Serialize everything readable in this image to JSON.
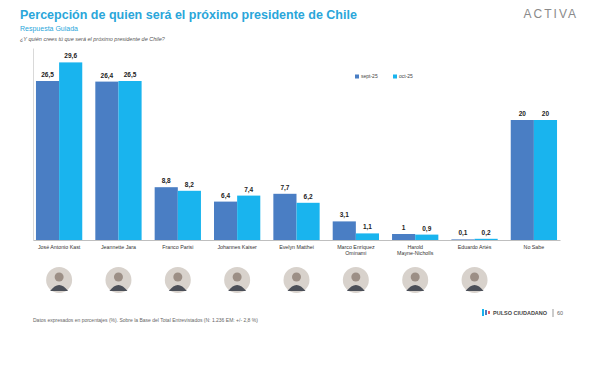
{
  "chart_data": {
    "type": "bar",
    "title": "Percepción de quien será el próximo presidente de Chile",
    "subtitle": "Respuesta Guiada",
    "question": "¿Y quién crees tú que será el próximo presidente de Chile?",
    "brand": "ACTIVA",
    "note": "Datos expresados en porcentajes (%). Sobre la Base del Total Entrevistados (N: 1.236 EM: +/- 2,8 %)",
    "source": "PULSO CIUDADANO",
    "page": "60",
    "categories": [
      "José Antonio Kast",
      "Jeannette Jara",
      "Franco Parisi",
      "Johannes Kaiser",
      "Evelyn Matthei",
      "Marco Enríquez Ominami",
      "Harold Mayne-Nicholls",
      "Eduardo Artés",
      "No Sabe"
    ],
    "series": [
      {
        "name": "sept-25",
        "color": "#4a7ec4",
        "values": [
          26.5,
          26.4,
          8.8,
          6.4,
          7.7,
          3.1,
          1,
          0.1,
          20
        ],
        "value_labels": [
          "26,5",
          "26,4",
          "8,8",
          "6,4",
          "7,7",
          "3,1",
          "1",
          "0,1",
          "20"
        ]
      },
      {
        "name": "oct-25",
        "color": "#19b4ee",
        "values": [
          29.6,
          26.5,
          8.2,
          7.4,
          6.2,
          1.1,
          0.9,
          0.2,
          20
        ],
        "value_labels": [
          "29,6",
          "26,5",
          "8,2",
          "7,4",
          "6,2",
          "1,1",
          "0,9",
          "0,2",
          "20"
        ]
      }
    ],
    "ylim": [
      0,
      32
    ],
    "tick_labels": "x",
    "data_labels": true,
    "legend": "top-right",
    "grid": false
  }
}
